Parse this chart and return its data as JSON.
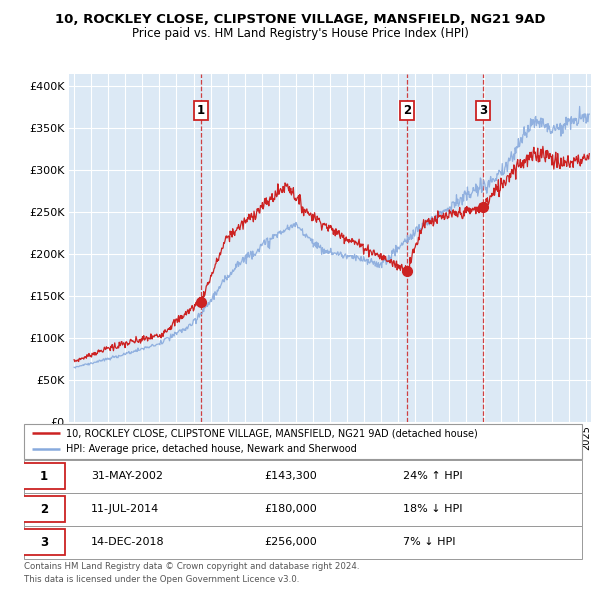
{
  "title1": "10, ROCKLEY CLOSE, CLIPSTONE VILLAGE, MANSFIELD, NG21 9AD",
  "title2": "Price paid vs. HM Land Registry's House Price Index (HPI)",
  "background_color": "#dce9f5",
  "hpi_color": "#88aadd",
  "price_color": "#cc2222",
  "sales": [
    {
      "date_num": 2002.42,
      "price": 143300,
      "label": "1",
      "date_str": "31-MAY-2002",
      "pct": "24%",
      "dir": "↑"
    },
    {
      "date_num": 2014.53,
      "price": 180000,
      "label": "2",
      "date_str": "11-JUL-2014",
      "pct": "18%",
      "dir": "↓"
    },
    {
      "date_num": 2018.96,
      "price": 256000,
      "label": "3",
      "date_str": "14-DEC-2018",
      "pct": "7%",
      "dir": "↓"
    }
  ],
  "legend_label1": "10, ROCKLEY CLOSE, CLIPSTONE VILLAGE, MANSFIELD, NG21 9AD (detached house)",
  "legend_label2": "HPI: Average price, detached house, Newark and Sherwood",
  "footer1": "Contains HM Land Registry data © Crown copyright and database right 2024.",
  "footer2": "This data is licensed under the Open Government Licence v3.0.",
  "yticks": [
    0,
    50000,
    100000,
    150000,
    200000,
    250000,
    300000,
    350000,
    400000
  ],
  "ylim": [
    0,
    415000
  ],
  "xlim_start": 1994.7,
  "xlim_end": 2025.3
}
